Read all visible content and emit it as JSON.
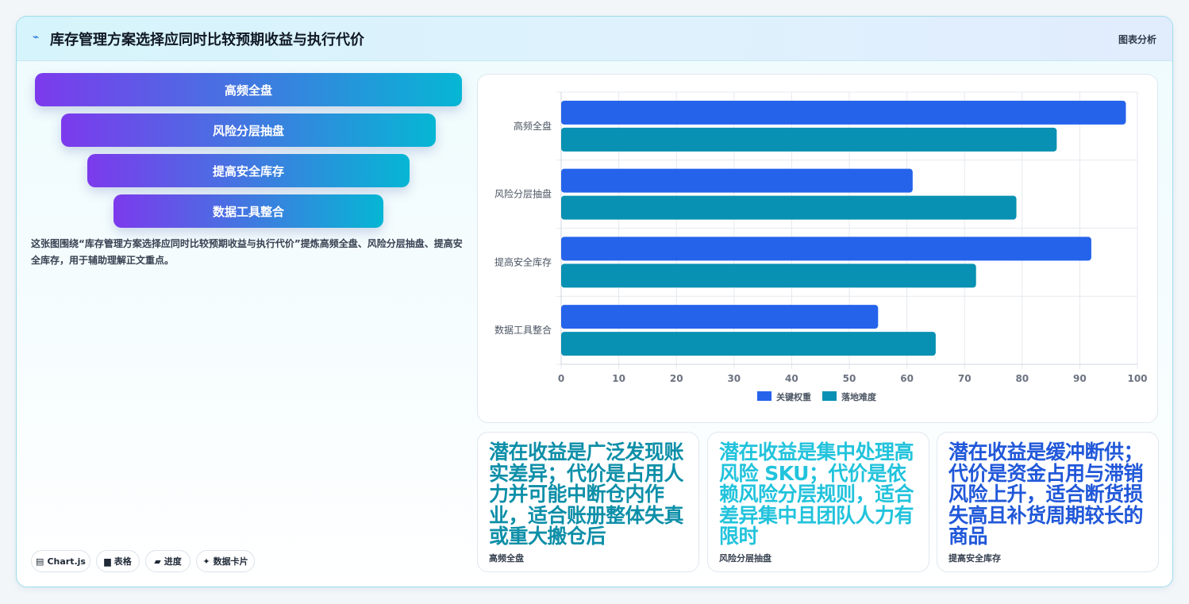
{
  "header": {
    "title": "库存管理方案选择应同时比较预期收益与执行代价",
    "tag": "图表分析",
    "icon": "trend-line-icon"
  },
  "funnel": [
    "高频全盘",
    "风险分层抽盘",
    "提高安全库存",
    "数据工具整合"
  ],
  "description": "这张图围绕“库存管理方案选择应同时比较预期收益与执行代价”提炼高频全盘、风险分层抽盘、提高安全库存，用于辅助理解正文重点。",
  "chips": [
    {
      "icon": "chart-icon",
      "glyph": "▤",
      "label": "Chart.js"
    },
    {
      "icon": "table-icon",
      "glyph": "▆",
      "label": "表格"
    },
    {
      "icon": "progress-icon",
      "glyph": "▰",
      "label": "进度"
    },
    {
      "icon": "sparkle-icon",
      "glyph": "✦",
      "label": "数据卡片"
    }
  ],
  "chart_data": {
    "type": "bar",
    "orientation": "horizontal",
    "categories": [
      "高频全盘",
      "风险分层抽盘",
      "提高安全库存",
      "数据工具整合"
    ],
    "series": [
      {
        "name": "关键权重",
        "values": [
          98,
          61,
          92,
          55
        ],
        "color": "#2563eb"
      },
      {
        "name": "落地难度",
        "values": [
          86,
          79,
          72,
          65
        ],
        "color": "#0891b2"
      }
    ],
    "xlim": [
      0,
      100
    ],
    "xticks": [
      0,
      10,
      20,
      30,
      40,
      50,
      60,
      70,
      80,
      90,
      100
    ],
    "grid": true,
    "legend": "bottom"
  },
  "stats": [
    {
      "text": "潜在收益是广泛发现账实差异；代价是占用人力并可能中断仓内作业，适合账册整体失真或重大搬仓后",
      "label": "高频全盘",
      "color": "#0e8fa8"
    },
    {
      "text": "潜在收益是集中处理高风险 SKU；代价是依赖风险分层规则，适合差异集中且团队人力有限时",
      "label": "风险分层抽盘",
      "color": "#22c3dc"
    },
    {
      "text": "潜在收益是缓冲断供；代价是资金占用与滞销风险上升，适合断货损失高且补货周期较长的商品",
      "label": "提高安全库存",
      "color": "#2158d9"
    }
  ]
}
